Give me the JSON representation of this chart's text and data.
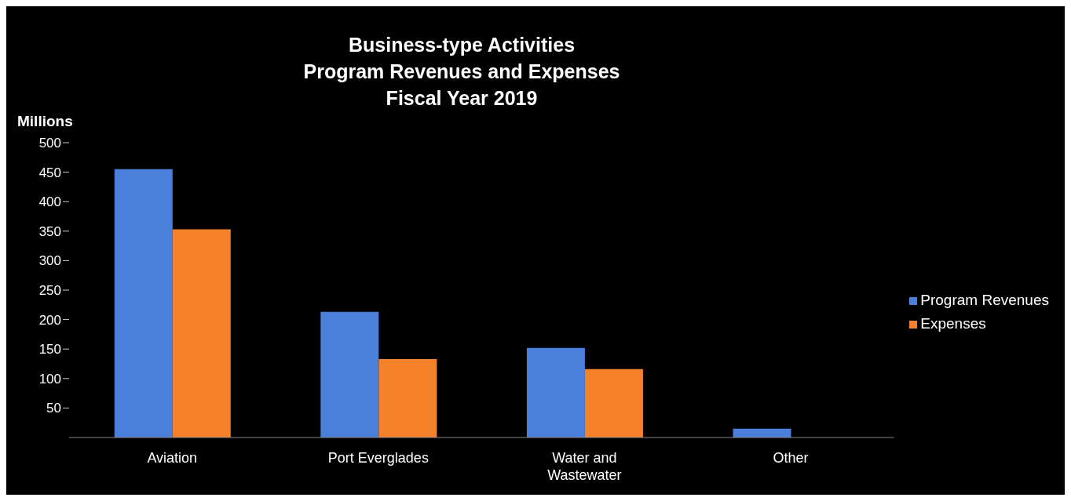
{
  "chart_data": {
    "type": "bar",
    "title": "Business-type Activities\nProgram Revenues and Expenses\nFiscal Year 2019",
    "ylabel": "Millions",
    "categories": [
      "Aviation",
      "Port Everglades",
      "Water and Wastewater",
      "Other"
    ],
    "series": [
      {
        "name": "Program Revenues",
        "color": "#4a7fdc",
        "values": [
          455,
          213,
          152,
          15
        ]
      },
      {
        "name": "Expenses",
        "color": "#f5812a",
        "values": [
          353,
          133,
          116,
          null
        ]
      }
    ],
    "ylim": [
      0,
      500
    ],
    "yticks": [
      50,
      100,
      150,
      200,
      250,
      300,
      350,
      400,
      450,
      500
    ],
    "grid": false,
    "legend": "right"
  }
}
